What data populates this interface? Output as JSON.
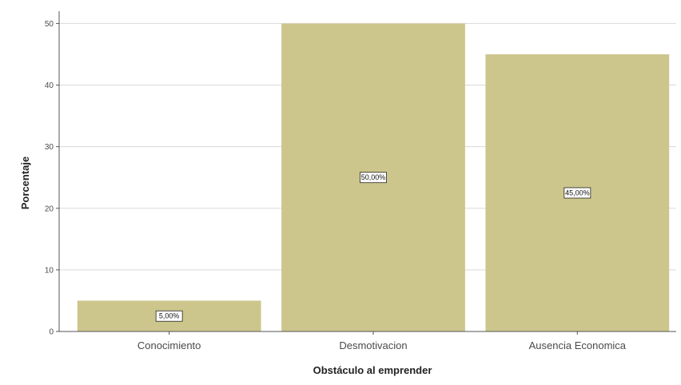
{
  "chart_data": {
    "type": "bar",
    "title": "",
    "xlabel": "Obstáculo al emprender",
    "ylabel": "Porcentaje",
    "categories": [
      "Conocimiento",
      "Desmotivacion",
      "Ausencia Economica"
    ],
    "values": [
      5,
      50,
      45
    ],
    "data_labels": [
      "5,00%",
      "50,00%",
      "45,00%"
    ],
    "ylim": [
      0,
      52
    ],
    "yticks": [
      0,
      10,
      20,
      30,
      40,
      50
    ],
    "grid": true,
    "legend": "none",
    "colors": {
      "bar": "#cdc68c",
      "grid": "#d9d9d9",
      "axis": "#555555"
    }
  }
}
